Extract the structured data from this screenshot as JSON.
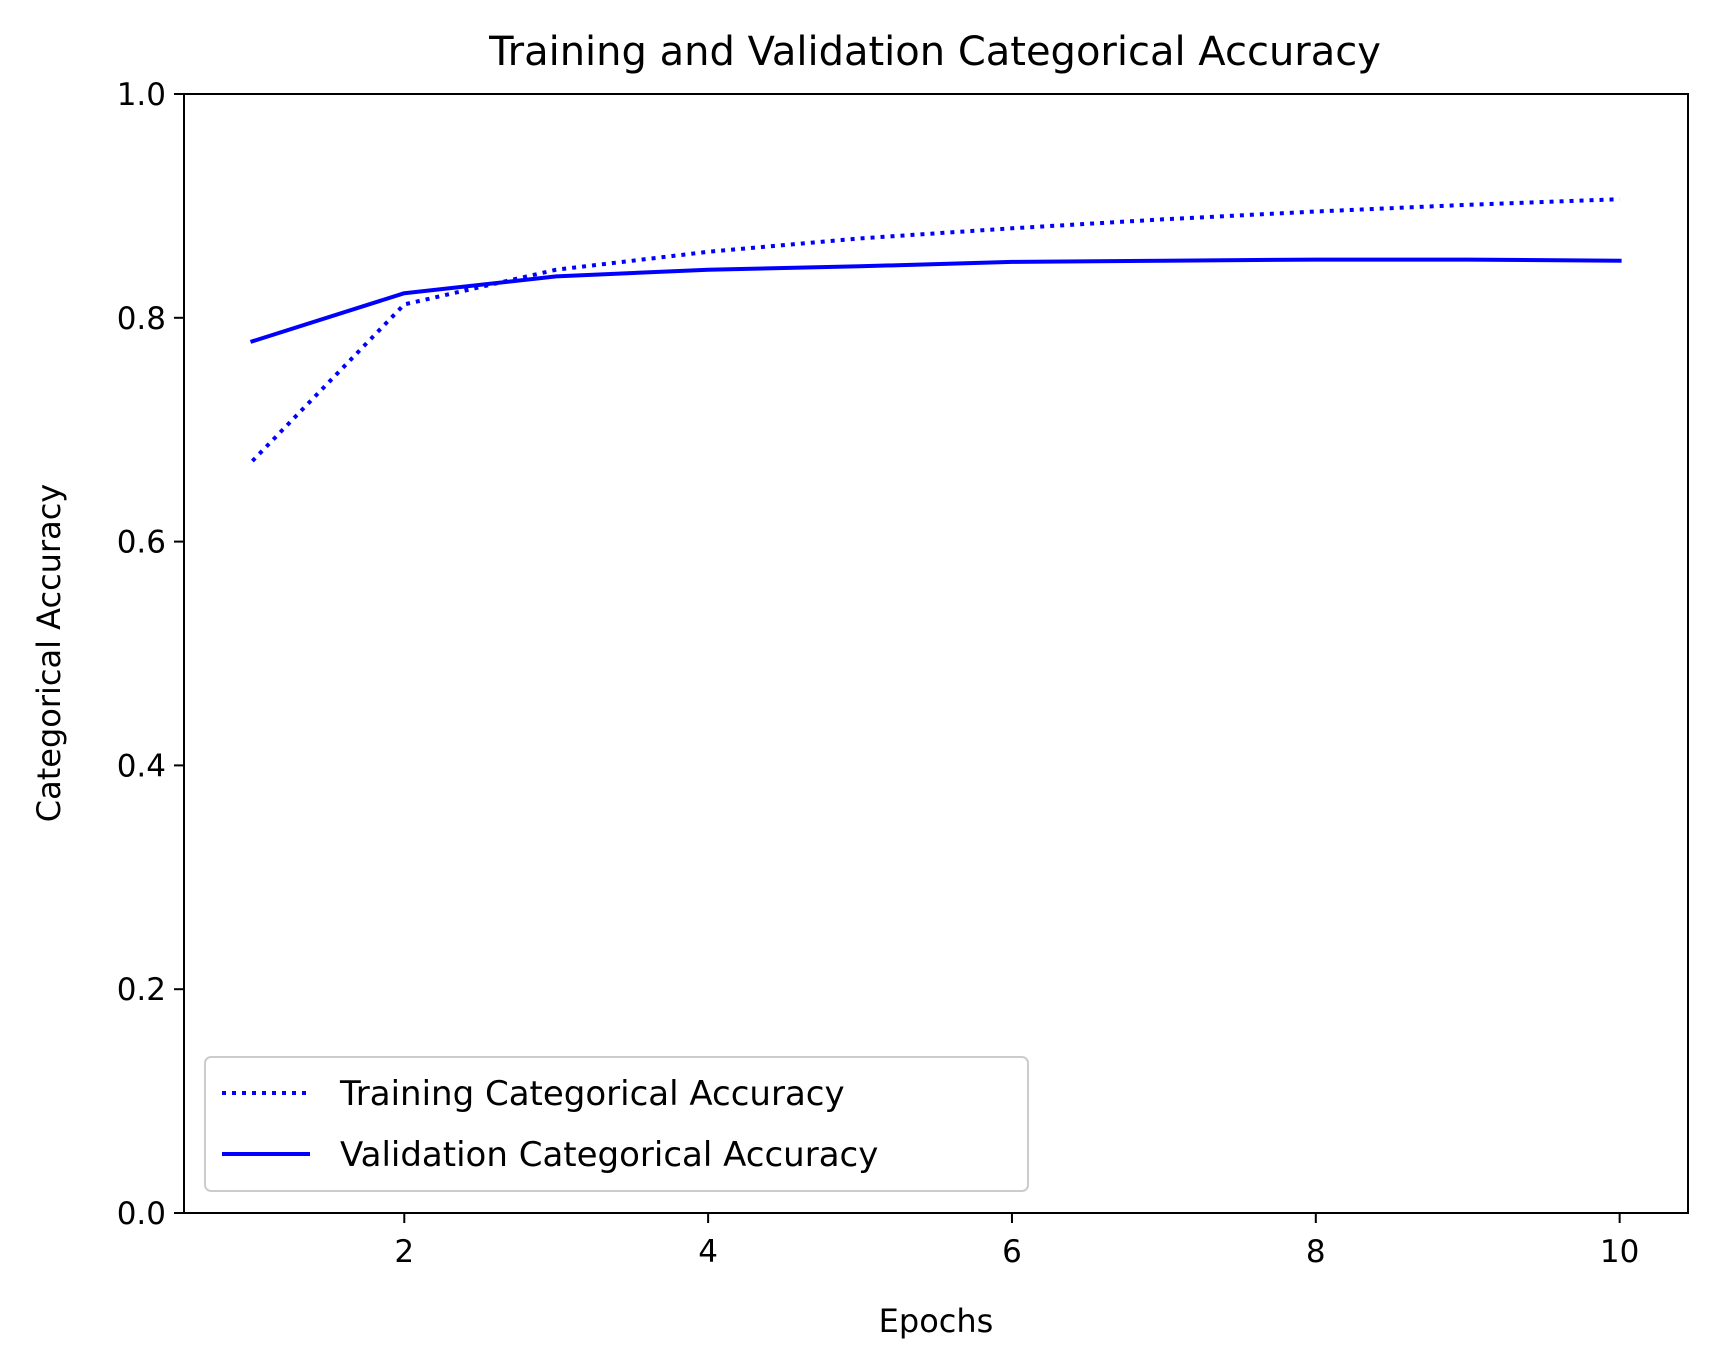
{
  "chart_data": {
    "type": "line",
    "title": "Training and Validation Categorical Accuracy",
    "xlabel": "Epochs",
    "ylabel": "Categorical Accuracy",
    "x": [
      1,
      2,
      3,
      4,
      5,
      6,
      7,
      8,
      9,
      10
    ],
    "xlim": [
      0.55,
      10.45
    ],
    "ylim": [
      0.0,
      1.0
    ],
    "xticks": [
      2,
      4,
      6,
      8,
      10
    ],
    "yticks": [
      0.0,
      0.2,
      0.4,
      0.6,
      0.8,
      1.0
    ],
    "xtick_labels": [
      "2",
      "4",
      "6",
      "8",
      "10"
    ],
    "ytick_labels": [
      "0.0",
      "0.2",
      "0.4",
      "0.6",
      "0.8",
      "1.0"
    ],
    "grid": false,
    "legend_position": "lower-left",
    "series": [
      {
        "name": "Training Categorical Accuracy",
        "style": "dotted",
        "color": "#0000ff",
        "values": [
          0.672,
          0.812,
          0.843,
          0.859,
          0.871,
          0.88,
          0.888,
          0.895,
          0.901,
          0.906
        ]
      },
      {
        "name": "Validation Categorical Accuracy",
        "style": "solid",
        "color": "#0000ff",
        "values": [
          0.779,
          0.822,
          0.837,
          0.843,
          0.846,
          0.85,
          0.851,
          0.852,
          0.852,
          0.851
        ]
      }
    ]
  }
}
